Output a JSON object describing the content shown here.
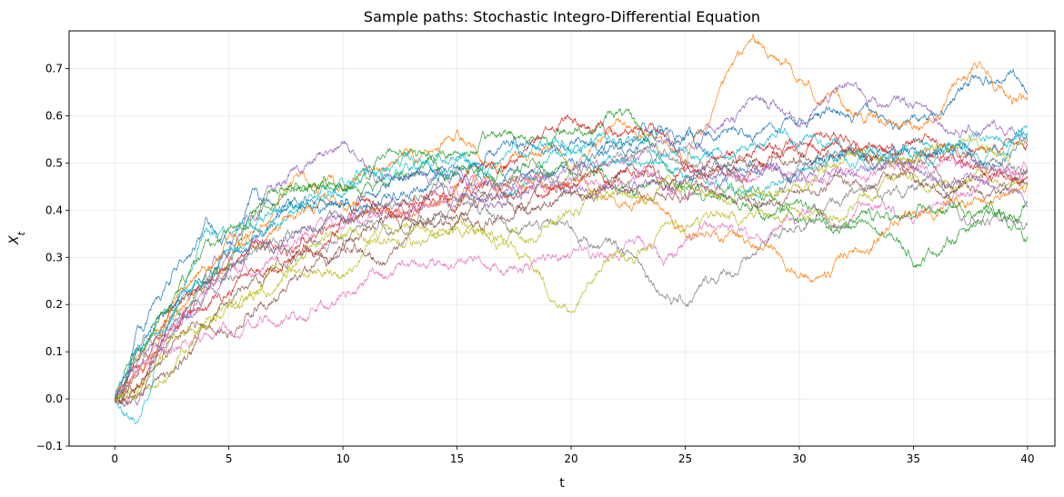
{
  "chart_data": {
    "type": "line",
    "title": "Sample paths: Stochastic Integro-Differential Equation",
    "xlabel": "t",
    "ylabel": "X_t",
    "xlim": [
      -2,
      41.2
    ],
    "ylim": [
      -0.1,
      0.78
    ],
    "x_ticks": [
      0,
      5,
      10,
      15,
      20,
      25,
      30,
      35,
      40
    ],
    "y_ticks": [
      -0.1,
      0.0,
      0.1,
      0.2,
      0.3,
      0.4,
      0.5,
      0.6,
      0.7
    ],
    "x_tick_labels": [
      "0",
      "5",
      "10",
      "15",
      "20",
      "25",
      "30",
      "35",
      "40"
    ],
    "y_tick_labels": [
      "−0.1",
      "0.0",
      "0.1",
      "0.2",
      "0.3",
      "0.4",
      "0.5",
      "0.6",
      "0.7"
    ],
    "grid": true,
    "legend": "none",
    "colors": [
      "#1f77b4",
      "#ff7f0e",
      "#2ca02c",
      "#d62728",
      "#9467bd",
      "#8c564b",
      "#e377c2",
      "#7f7f7f",
      "#bcbd22",
      "#17becf"
    ],
    "series": [
      {
        "x": [
          0,
          1,
          2,
          3,
          4,
          5,
          6,
          8,
          10,
          12,
          15,
          17,
          20,
          22,
          25,
          28,
          30,
          32,
          35,
          38,
          40
        ],
        "values": [
          0.0,
          0.14,
          0.2,
          0.28,
          0.34,
          0.3,
          0.38,
          0.4,
          0.42,
          0.46,
          0.47,
          0.48,
          0.52,
          0.55,
          0.56,
          0.58,
          0.6,
          0.63,
          0.6,
          0.68,
          0.66
        ]
      },
      {
        "x": [
          0,
          1,
          2,
          3,
          4,
          5,
          6,
          8,
          10,
          12,
          15,
          17,
          20,
          22,
          25,
          28,
          30,
          32,
          35,
          38,
          40
        ],
        "values": [
          0.0,
          0.08,
          0.15,
          0.22,
          0.25,
          0.3,
          0.36,
          0.48,
          0.45,
          0.47,
          0.55,
          0.5,
          0.52,
          0.58,
          0.5,
          0.72,
          0.65,
          0.6,
          0.58,
          0.7,
          0.62
        ]
      },
      {
        "x": [
          0,
          1,
          2,
          3,
          4,
          5,
          6,
          8,
          10,
          12,
          15,
          17,
          20,
          22,
          25,
          28,
          30,
          32,
          35,
          38,
          40
        ],
        "values": [
          0.0,
          0.1,
          0.18,
          0.22,
          0.28,
          0.32,
          0.4,
          0.5,
          0.45,
          0.48,
          0.52,
          0.55,
          0.58,
          0.62,
          0.45,
          0.42,
          0.4,
          0.38,
          0.3,
          0.4,
          0.35
        ]
      },
      {
        "x": [
          0,
          1,
          2,
          3,
          4,
          5,
          6,
          8,
          10,
          12,
          15,
          17,
          20,
          22,
          25,
          28,
          30,
          32,
          35,
          38,
          40
        ],
        "values": [
          0.0,
          0.05,
          0.12,
          0.2,
          0.24,
          0.28,
          0.3,
          0.32,
          0.35,
          0.4,
          0.45,
          0.5,
          0.6,
          0.55,
          0.5,
          0.52,
          0.55,
          0.58,
          0.52,
          0.55,
          0.5
        ]
      },
      {
        "x": [
          0,
          1,
          2,
          3,
          4,
          5,
          6,
          8,
          10,
          12,
          15,
          17,
          20,
          22,
          25,
          28,
          30,
          32,
          35,
          38,
          40
        ],
        "values": [
          0.0,
          -0.02,
          0.1,
          0.18,
          0.25,
          0.3,
          0.38,
          0.45,
          0.52,
          0.48,
          0.5,
          0.45,
          0.48,
          0.52,
          0.56,
          0.62,
          0.6,
          0.65,
          0.62,
          0.58,
          0.56
        ]
      },
      {
        "x": [
          0,
          1,
          2,
          3,
          4,
          5,
          6,
          8,
          10,
          12,
          15,
          17,
          20,
          22,
          25,
          28,
          30,
          32,
          35,
          38,
          40
        ],
        "values": [
          0.0,
          0.02,
          0.05,
          0.08,
          0.14,
          0.16,
          0.2,
          0.26,
          0.3,
          0.32,
          0.38,
          0.42,
          0.45,
          0.48,
          0.46,
          0.5,
          0.52,
          0.55,
          0.5,
          0.48,
          0.46
        ]
      },
      {
        "x": [
          0,
          1,
          2,
          3,
          4,
          5,
          6,
          8,
          10,
          12,
          15,
          17,
          20,
          22,
          25,
          28,
          30,
          32,
          35,
          38,
          40
        ],
        "values": [
          0.0,
          0.03,
          0.08,
          0.1,
          0.12,
          0.14,
          0.16,
          0.2,
          0.24,
          0.28,
          0.26,
          0.28,
          0.3,
          0.32,
          0.3,
          0.34,
          0.38,
          0.36,
          0.4,
          0.46,
          0.5
        ]
      },
      {
        "x": [
          0,
          1,
          2,
          3,
          4,
          5,
          6,
          8,
          10,
          12,
          15,
          17,
          20,
          22,
          25,
          28,
          30,
          32,
          35,
          38,
          40
        ],
        "values": [
          0.0,
          0.05,
          0.12,
          0.18,
          0.22,
          0.26,
          0.3,
          0.34,
          0.36,
          0.38,
          0.4,
          0.38,
          0.35,
          0.32,
          0.22,
          0.3,
          0.4,
          0.42,
          0.44,
          0.4,
          0.38
        ]
      },
      {
        "x": [
          0,
          1,
          2,
          3,
          4,
          5,
          6,
          8,
          10,
          12,
          15,
          17,
          20,
          22,
          25,
          28,
          30,
          32,
          35,
          38,
          40
        ],
        "values": [
          0.0,
          0.02,
          0.06,
          0.1,
          0.16,
          0.2,
          0.24,
          0.3,
          0.34,
          0.32,
          0.36,
          0.32,
          0.2,
          0.3,
          0.36,
          0.4,
          0.42,
          0.4,
          0.46,
          0.48,
          0.46
        ]
      },
      {
        "x": [
          0,
          1,
          2,
          3,
          4,
          5,
          6,
          8,
          10,
          12,
          15,
          17,
          20,
          22,
          25,
          28,
          30,
          32,
          35,
          38,
          40
        ],
        "values": [
          0.0,
          -0.05,
          0.15,
          0.26,
          0.36,
          0.32,
          0.34,
          0.38,
          0.44,
          0.48,
          0.5,
          0.46,
          0.52,
          0.5,
          0.48,
          0.46,
          0.5,
          0.52,
          0.54,
          0.5,
          0.52
        ]
      },
      {
        "x": [
          0,
          1,
          2,
          3,
          4,
          5,
          6,
          8,
          10,
          12,
          15,
          17,
          20,
          22,
          25,
          28,
          30,
          32,
          35,
          38,
          40
        ],
        "values": [
          0.0,
          0.12,
          0.2,
          0.26,
          0.3,
          0.34,
          0.36,
          0.42,
          0.44,
          0.46,
          0.48,
          0.5,
          0.52,
          0.5,
          0.54,
          0.5,
          0.48,
          0.5,
          0.52,
          0.5,
          0.56
        ]
      },
      {
        "x": [
          0,
          1,
          2,
          3,
          4,
          5,
          6,
          8,
          10,
          12,
          15,
          17,
          20,
          22,
          25,
          28,
          30,
          32,
          35,
          38,
          40
        ],
        "values": [
          0.0,
          0.06,
          0.14,
          0.2,
          0.26,
          0.3,
          0.34,
          0.4,
          0.42,
          0.4,
          0.44,
          0.46,
          0.44,
          0.42,
          0.4,
          0.36,
          0.3,
          0.32,
          0.4,
          0.44,
          0.48
        ]
      },
      {
        "x": [
          0,
          1,
          2,
          3,
          4,
          5,
          6,
          8,
          10,
          12,
          15,
          17,
          20,
          22,
          25,
          28,
          30,
          32,
          35,
          38,
          40
        ],
        "values": [
          0.0,
          0.08,
          0.16,
          0.24,
          0.3,
          0.34,
          0.38,
          0.44,
          0.46,
          0.5,
          0.48,
          0.52,
          0.5,
          0.48,
          0.45,
          0.44,
          0.42,
          0.38,
          0.36,
          0.4,
          0.42
        ]
      },
      {
        "x": [
          0,
          1,
          2,
          3,
          4,
          5,
          6,
          8,
          10,
          12,
          15,
          17,
          20,
          22,
          25,
          28,
          30,
          32,
          35,
          38,
          40
        ],
        "values": [
          0.0,
          0.04,
          0.1,
          0.16,
          0.2,
          0.24,
          0.28,
          0.32,
          0.36,
          0.4,
          0.42,
          0.44,
          0.46,
          0.48,
          0.5,
          0.52,
          0.55,
          0.56,
          0.55,
          0.5,
          0.48
        ]
      },
      {
        "x": [
          0,
          1,
          2,
          3,
          4,
          5,
          6,
          8,
          10,
          12,
          15,
          17,
          20,
          22,
          25,
          28,
          30,
          32,
          35,
          38,
          40
        ],
        "values": [
          0.0,
          0.06,
          0.12,
          0.18,
          0.22,
          0.26,
          0.3,
          0.36,
          0.38,
          0.42,
          0.44,
          0.42,
          0.46,
          0.48,
          0.46,
          0.5,
          0.48,
          0.52,
          0.5,
          0.46,
          0.44
        ]
      },
      {
        "x": [
          0,
          1,
          2,
          3,
          4,
          5,
          6,
          8,
          10,
          12,
          15,
          17,
          20,
          22,
          25,
          28,
          30,
          32,
          35,
          38,
          40
        ],
        "values": [
          0.0,
          0.03,
          0.08,
          0.14,
          0.18,
          0.22,
          0.26,
          0.3,
          0.32,
          0.36,
          0.38,
          0.4,
          0.42,
          0.44,
          0.42,
          0.4,
          0.44,
          0.46,
          0.48,
          0.45,
          0.44
        ]
      },
      {
        "x": [
          0,
          1,
          2,
          3,
          4,
          5,
          6,
          8,
          10,
          12,
          15,
          17,
          20,
          22,
          25,
          28,
          30,
          32,
          35,
          38,
          40
        ],
        "values": [
          0.0,
          0.05,
          0.1,
          0.16,
          0.2,
          0.25,
          0.28,
          0.34,
          0.38,
          0.4,
          0.44,
          0.46,
          0.44,
          0.46,
          0.48,
          0.5,
          0.52,
          0.5,
          0.5,
          0.52,
          0.5
        ]
      },
      {
        "x": [
          0,
          1,
          2,
          3,
          4,
          5,
          6,
          8,
          10,
          12,
          15,
          17,
          20,
          22,
          25,
          28,
          30,
          32,
          35,
          38,
          40
        ],
        "values": [
          0.0,
          0.07,
          0.13,
          0.2,
          0.24,
          0.28,
          0.32,
          0.38,
          0.4,
          0.42,
          0.44,
          0.46,
          0.48,
          0.5,
          0.48,
          0.46,
          0.48,
          0.5,
          0.52,
          0.5,
          0.5
        ]
      },
      {
        "x": [
          0,
          1,
          2,
          3,
          4,
          5,
          6,
          8,
          10,
          12,
          15,
          17,
          20,
          22,
          25,
          28,
          30,
          32,
          35,
          38,
          40
        ],
        "values": [
          0.0,
          0.02,
          0.06,
          0.12,
          0.16,
          0.2,
          0.24,
          0.28,
          0.3,
          0.34,
          0.36,
          0.38,
          0.4,
          0.42,
          0.44,
          0.46,
          0.48,
          0.5,
          0.52,
          0.54,
          0.52
        ]
      },
      {
        "x": [
          0,
          1,
          2,
          3,
          4,
          5,
          6,
          8,
          10,
          12,
          15,
          17,
          20,
          22,
          25,
          28,
          30,
          32,
          35,
          38,
          40
        ],
        "values": [
          0.0,
          0.09,
          0.15,
          0.2,
          0.25,
          0.3,
          0.34,
          0.4,
          0.44,
          0.46,
          0.5,
          0.48,
          0.5,
          0.52,
          0.5,
          0.54,
          0.56,
          0.54,
          0.55,
          0.56,
          0.58
        ]
      }
    ]
  }
}
